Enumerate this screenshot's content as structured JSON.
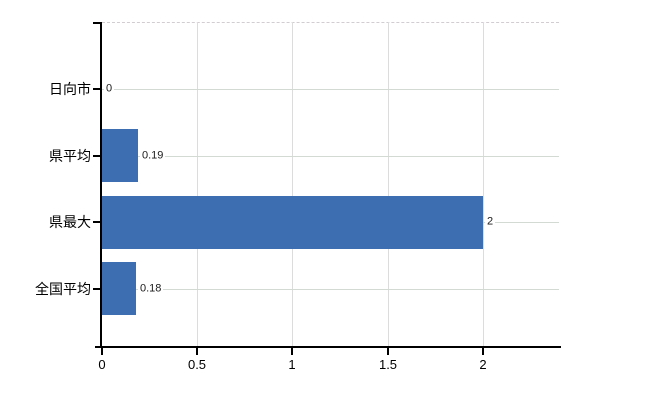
{
  "chart_data": {
    "type": "bar",
    "orientation": "horizontal",
    "title": "",
    "xlabel": "",
    "ylabel": "",
    "categories": [
      "日向市",
      "県平均",
      "県最大",
      "全国平均"
    ],
    "values": [
      0,
      0.19,
      2,
      0.18
    ],
    "value_labels": [
      "0",
      "0.19",
      "2",
      "0.18"
    ],
    "x_ticks": [
      0,
      0.5,
      1,
      1.5,
      2
    ],
    "x_tick_labels": [
      "0",
      "0.5",
      "1",
      "1.5",
      "2"
    ],
    "xlim": [
      0,
      2.4
    ],
    "grid": "on",
    "legend": "none",
    "bar_color": "#3d6eb2",
    "grid_color": "#d9d9d9",
    "axis_color": "#000000",
    "background_color": "#ffffff"
  }
}
